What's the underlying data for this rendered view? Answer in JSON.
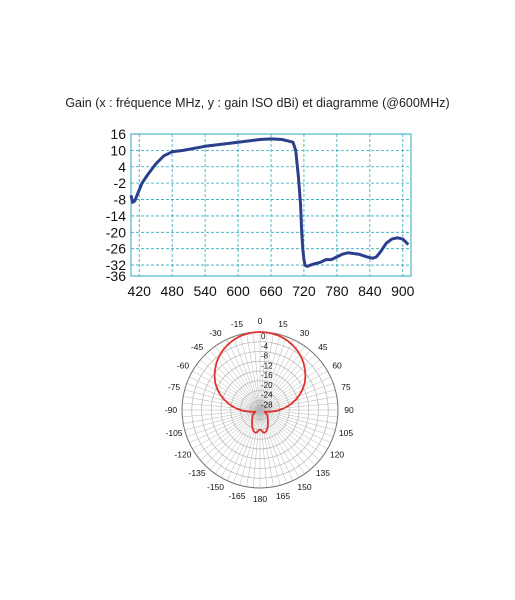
{
  "title": "Gain (x : fréquence MHz, y : gain ISO dBi) et diagramme (@600MHz)",
  "colors": {
    "gain_line": "#2b3f8c",
    "grid": "#2aa8b8",
    "polar_line": "#e0322f",
    "polar_grid": "#b5b5b5"
  },
  "chart_data": [
    {
      "type": "line",
      "title": "",
      "xlabel": "",
      "ylabel": "",
      "xlim": [
        405,
        915
      ],
      "ylim": [
        -36,
        16
      ],
      "x_ticks": [
        "420",
        "480",
        "540",
        "600",
        "660",
        "720",
        "780",
        "840",
        "900"
      ],
      "y_ticks": [
        "16",
        "10",
        "4",
        "-2",
        "-8",
        "-14",
        "-20",
        "-26",
        "-32",
        "-36"
      ],
      "grid": true,
      "series": [
        {
          "x": [
            405,
            408,
            412,
            418,
            425,
            435,
            450,
            465,
            480,
            500,
            540,
            600,
            640,
            660,
            680,
            700,
            705,
            710,
            714,
            716,
            718,
            720,
            722,
            726,
            732,
            740,
            750,
            760,
            770,
            780,
            790,
            800,
            820,
            835,
            845,
            852,
            860,
            870,
            880,
            890,
            900,
            910
          ],
          "y": [
            -6.5,
            -9,
            -8.5,
            -5.5,
            -2,
            1,
            5,
            8,
            9.5,
            10,
            11.5,
            13,
            14,
            14.2,
            14,
            13,
            10,
            0,
            -10,
            -20,
            -26,
            -30,
            -32,
            -32.5,
            -32,
            -31.5,
            -31,
            -30,
            -30,
            -29,
            -28,
            -27.5,
            -28,
            -29,
            -29.5,
            -29,
            -27,
            -24,
            -22.5,
            -22,
            -22.5,
            -24.5
          ]
        }
      ]
    },
    {
      "type": "polar",
      "title": "",
      "angle_ticks": [
        "0",
        "15",
        "30",
        "45",
        "60",
        "75",
        "90",
        "105",
        "120",
        "135",
        "150",
        "165",
        "180",
        "-165",
        "-150",
        "-135",
        "-120",
        "-105",
        "-90",
        "-75",
        "-60",
        "-45",
        "-30",
        "-15"
      ],
      "radial_ticks": [
        "0",
        "-4",
        "-8",
        "-12",
        "-16",
        "-20",
        "-24",
        "-28"
      ],
      "rlim": [
        -32,
        0
      ],
      "series": [
        {
          "angles_deg": [
            0,
            10,
            20,
            30,
            40,
            50,
            60,
            70,
            80,
            90,
            100,
            110,
            120,
            130,
            140,
            150,
            160,
            170,
            180,
            190,
            200,
            210,
            220,
            230,
            240,
            250,
            260,
            270,
            280,
            290,
            300,
            310,
            320,
            330,
            340,
            350
          ],
          "gain_db": [
            0,
            -0.3,
            -1.2,
            -2.8,
            -5,
            -7.8,
            -11,
            -15,
            -19.5,
            -24,
            -28,
            -30,
            -29,
            -28,
            -27,
            -25.5,
            -23.5,
            -22.5,
            -24,
            -22.5,
            -23.5,
            -25.5,
            -27,
            -28,
            -29,
            -30,
            -28,
            -24,
            -19.5,
            -15,
            -11,
            -7.8,
            -5,
            -2.8,
            -1.2,
            -0.3
          ]
        }
      ]
    }
  ]
}
